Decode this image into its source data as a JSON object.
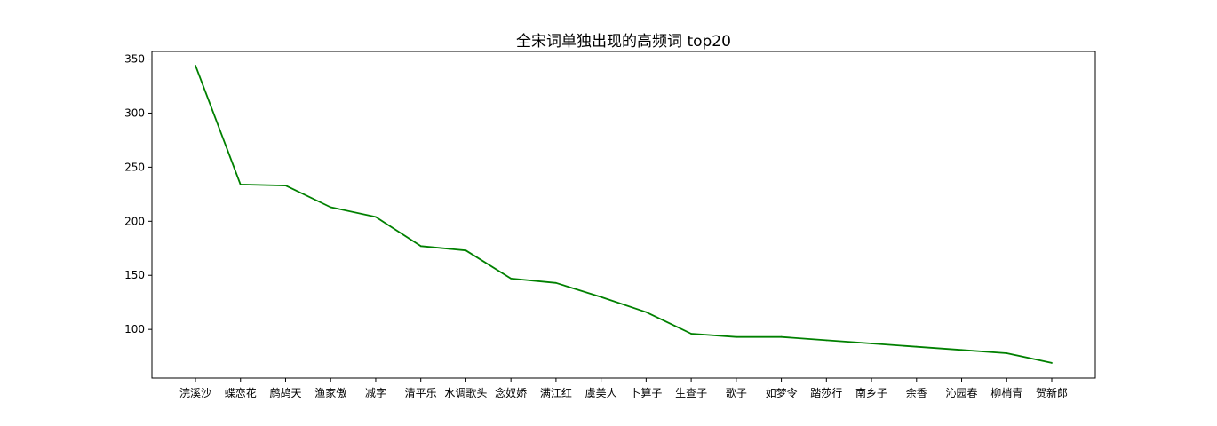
{
  "chart_data": {
    "type": "line",
    "title": "全宋词单独出现的高频词 top20",
    "xlabel": "",
    "ylabel": "",
    "categories": [
      "浣溪沙",
      "蝶恋花",
      "鹧鸪天",
      "渔家傲",
      "减字",
      "清平乐",
      "水调歌头",
      "念奴娇",
      "满江红",
      "虞美人",
      "卜算子",
      "生查子",
      "歌子",
      "如梦令",
      "踏莎行",
      "南乡子",
      "余香",
      "沁园春",
      "柳梢青",
      "贺新郎"
    ],
    "series": [
      {
        "values": [
          344,
          234,
          233,
          213,
          204,
          177,
          173,
          147,
          143,
          130,
          116,
          96,
          93,
          93,
          90,
          87,
          84,
          81,
          78,
          69
        ]
      }
    ],
    "ylim": [
      55,
      357
    ],
    "yticks": [
      100,
      150,
      200,
      250,
      300,
      350
    ],
    "grid": false,
    "line_color": "#008000"
  }
}
